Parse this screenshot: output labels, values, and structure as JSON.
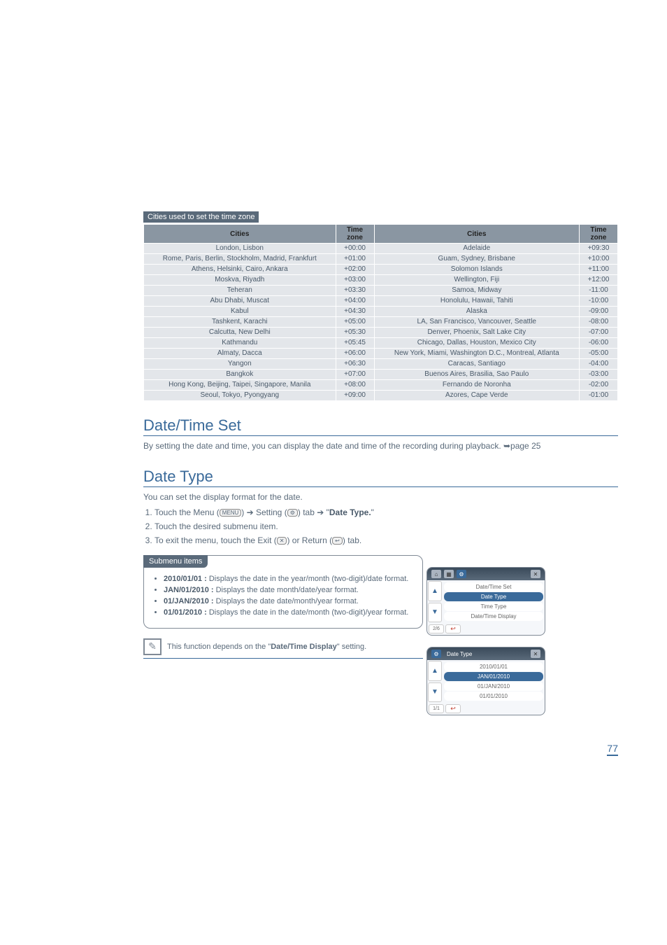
{
  "ui_param_max_tokens": 15000,
  "tz_section_title": "Cities used to set the time zone",
  "tz_headers": {
    "cities": "Cities",
    "zone": "Time zone"
  },
  "tz_rows_left": [
    {
      "city": "London, Lisbon",
      "zone": "+00:00"
    },
    {
      "city": "Rome, Paris, Berlin, Stockholm, Madrid, Frankfurt",
      "zone": "+01:00"
    },
    {
      "city": "Athens, Helsinki, Cairo, Ankara",
      "zone": "+02:00"
    },
    {
      "city": "Moskva, Riyadh",
      "zone": "+03:00"
    },
    {
      "city": "Teheran",
      "zone": "+03:30"
    },
    {
      "city": "Abu Dhabi, Muscat",
      "zone": "+04:00"
    },
    {
      "city": "Kabul",
      "zone": "+04:30"
    },
    {
      "city": "Tashkent, Karachi",
      "zone": "+05:00"
    },
    {
      "city": "Calcutta, New Delhi",
      "zone": "+05:30"
    },
    {
      "city": "Kathmandu",
      "zone": "+05:45"
    },
    {
      "city": "Almaty, Dacca",
      "zone": "+06:00"
    },
    {
      "city": "Yangon",
      "zone": "+06:30"
    },
    {
      "city": "Bangkok",
      "zone": "+07:00"
    },
    {
      "city": "Hong Kong, Beijing, Taipei, Singapore, Manila",
      "zone": "+08:00"
    },
    {
      "city": "Seoul, Tokyo, Pyongyang",
      "zone": "+09:00"
    }
  ],
  "tz_rows_right": [
    {
      "city": "Adelaide",
      "zone": "+09:30"
    },
    {
      "city": "Guam, Sydney, Brisbane",
      "zone": "+10:00"
    },
    {
      "city": "Solomon Islands",
      "zone": "+11:00"
    },
    {
      "city": "Wellington, Fiji",
      "zone": "+12:00"
    },
    {
      "city": "Samoa, Midway",
      "zone": "-11:00"
    },
    {
      "city": "Honolulu, Hawaii, Tahiti",
      "zone": "-10:00"
    },
    {
      "city": "Alaska",
      "zone": "-09:00"
    },
    {
      "city": "LA, San Francisco, Vancouver, Seattle",
      "zone": "-08:00"
    },
    {
      "city": "Denver, Phoenix, Salt Lake City",
      "zone": "-07:00"
    },
    {
      "city": "Chicago, Dallas, Houston, Mexico City",
      "zone": "-06:00"
    },
    {
      "city": "New York, Miami, Washington D.C., Montreal, Atlanta",
      "zone": "-05:00"
    },
    {
      "city": "Caracas, Santiago",
      "zone": "-04:00"
    },
    {
      "city": "Buenos Aires, Brasilia, Sao Paulo",
      "zone": "-03:00"
    },
    {
      "city": "Fernando de Noronha",
      "zone": "-02:00"
    },
    {
      "city": "Azores, Cape Verde",
      "zone": "-01:00"
    }
  ],
  "datetime": {
    "heading": "Date/Time Set",
    "body_pre": "By setting the date and time, you can display the date and time of the recording during playback. ",
    "body_link": "➥page 25"
  },
  "datetype": {
    "heading": "Date Type",
    "intro": "You can set the display format for the date.",
    "step1_a": "Touch the Menu (",
    "step1_b": ") ➔ Setting (",
    "step1_c": ") tab ➔ \"",
    "step1_d": "Date Type.",
    "step1_e": "\"",
    "step2": "Touch the desired submenu item.",
    "step3_a": "To exit the menu, touch the Exit (",
    "step3_b": ") or Return (",
    "step3_c": ") tab.",
    "menu_icon": "MENU",
    "gear_icon": "⚙",
    "exit_icon": "✕",
    "return_icon": "↩"
  },
  "submenu": {
    "tag": "Submenu items",
    "items": [
      {
        "b": "2010/01/01 :",
        "t": " Displays the date in the year/month (two-digit)/date format."
      },
      {
        "b": "JAN/01/2010 :",
        "t": " Displays the date month/date/year format."
      },
      {
        "b": "01/JAN/2010 :",
        "t": " Displays the date date/month/year format."
      },
      {
        "b": "01/01/2010 :",
        "t": " Displays the date in the date/month (two-digit)/year format."
      }
    ]
  },
  "note": {
    "icon": "✎",
    "text_a": "This function depends on the \"",
    "text_b": "Date/Time Display",
    "text_c": "\" setting."
  },
  "page_number": "77",
  "lcd1": {
    "items": [
      "Date/Time Set",
      "Date Type",
      "Time Type",
      "Date/Time Display"
    ],
    "selected": 1,
    "page": "2/6"
  },
  "lcd2": {
    "title": "Date Type",
    "items": [
      "2010/01/01",
      "JAN/01/2010",
      "01/JAN/2010",
      "01/01/2010"
    ],
    "selected": 1,
    "page": "1/1"
  }
}
